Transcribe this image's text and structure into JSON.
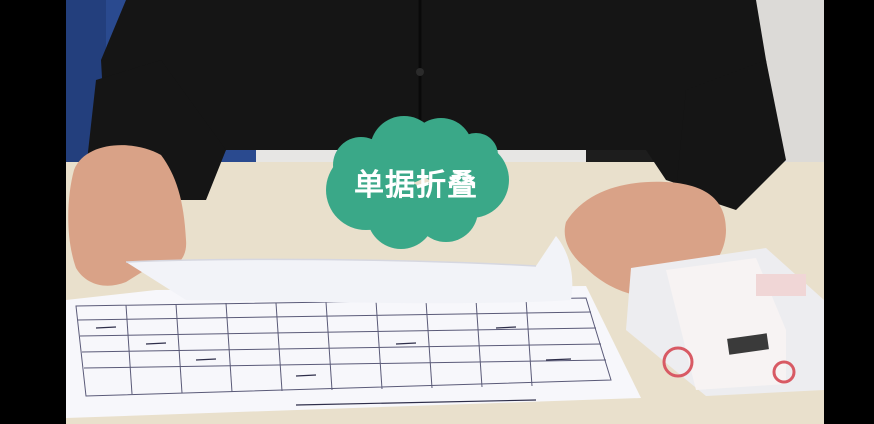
{
  "scene": {
    "caption": "单据折叠",
    "colors": {
      "wall": "#e7e6e4",
      "chair": "#2a4a8f",
      "shirt": "#151515",
      "desk": "#e9e0cc",
      "skin": "#d9a287",
      "paper": "#f7f7fb",
      "cloud": "#3aa888"
    }
  }
}
